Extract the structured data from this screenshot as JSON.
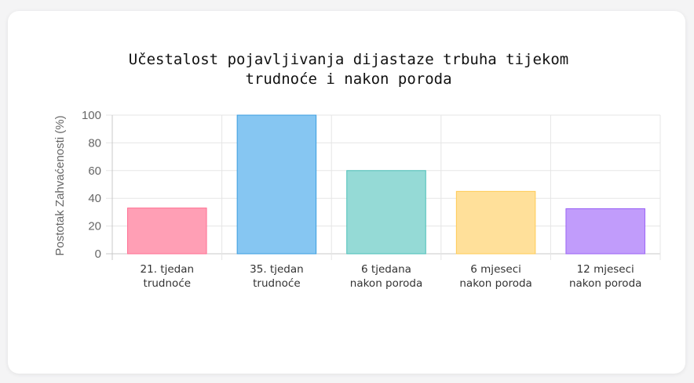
{
  "chart_data": {
    "type": "bar",
    "title": [
      "Učestalost pojavljivanja dijastaze trbuha tijekom",
      "trudnoće i nakon poroda"
    ],
    "xlabel": "",
    "ylabel": "Postotak Zahvaćenosti (%)",
    "ylim": [
      0,
      100
    ],
    "yticks": [
      0,
      20,
      40,
      60,
      80,
      100
    ],
    "grid": true,
    "categories": [
      [
        "21. tjedan",
        "trudnoće"
      ],
      [
        "35. tjedan",
        "trudnoće"
      ],
      [
        "6 tjedana",
        "nakon poroda"
      ],
      [
        "6 mjeseci",
        "nakon poroda"
      ],
      [
        "12 mjeseci",
        "nakon poroda"
      ]
    ],
    "values": [
      33,
      100,
      60,
      45,
      32.5
    ],
    "colors": [
      {
        "fill": "#ff9fb5",
        "stroke": "#ff6f93"
      },
      {
        "fill": "#86c6f2",
        "stroke": "#3b9ee0"
      },
      {
        "fill": "#95dad6",
        "stroke": "#4bbfb8"
      },
      {
        "fill": "#ffe09a",
        "stroke": "#ffcb55"
      },
      {
        "fill": "#c19cfb",
        "stroke": "#9a62f5"
      }
    ]
  }
}
